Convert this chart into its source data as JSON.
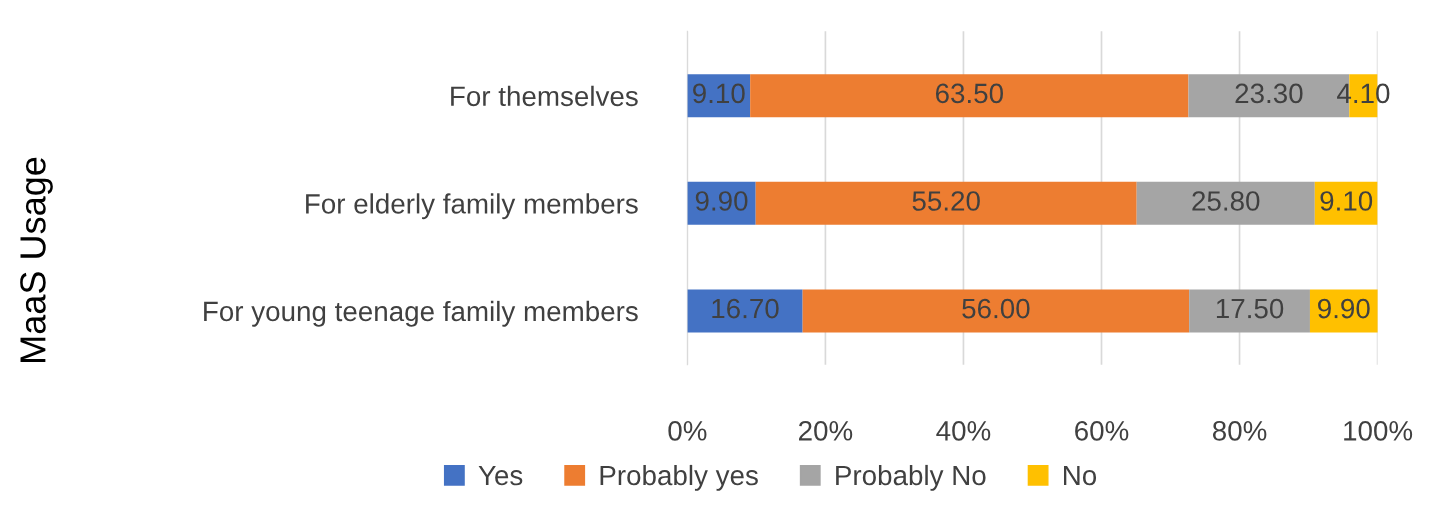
{
  "chart_data": {
    "type": "bar",
    "orientation": "horizontal",
    "stacked": true,
    "ylabel": "MaaS Usage",
    "categories": [
      "For themselves",
      "For elderly family members",
      "For young teenage family members"
    ],
    "series": [
      {
        "name": "Yes",
        "color": "#4472c4",
        "values": [
          9.1,
          9.9,
          16.7
        ],
        "value_labels": [
          "9.10",
          "9.90",
          "16.70"
        ]
      },
      {
        "name": "Probably yes",
        "color": "#ed7d31",
        "values": [
          63.5,
          55.2,
          56.0
        ],
        "value_labels": [
          "63.50",
          "55.20",
          "56.00"
        ]
      },
      {
        "name": "Probably No",
        "color": "#a5a5a5",
        "values": [
          23.3,
          25.8,
          17.5
        ],
        "value_labels": [
          "23.30",
          "25.80",
          "17.50"
        ]
      },
      {
        "name": "No",
        "color": "#ffc000",
        "values": [
          4.1,
          9.1,
          9.9
        ],
        "value_labels": [
          "4.10",
          "9.10",
          "9.90"
        ]
      }
    ],
    "xlim": [
      0,
      100
    ],
    "xticks": [
      {
        "value": 0,
        "label": "0%"
      },
      {
        "value": 20,
        "label": "20%"
      },
      {
        "value": 40,
        "label": "40%"
      },
      {
        "value": 60,
        "label": "60%"
      },
      {
        "value": 80,
        "label": "80%"
      },
      {
        "value": 100,
        "label": "100%"
      }
    ],
    "grid": "x",
    "legend": "bottom"
  }
}
